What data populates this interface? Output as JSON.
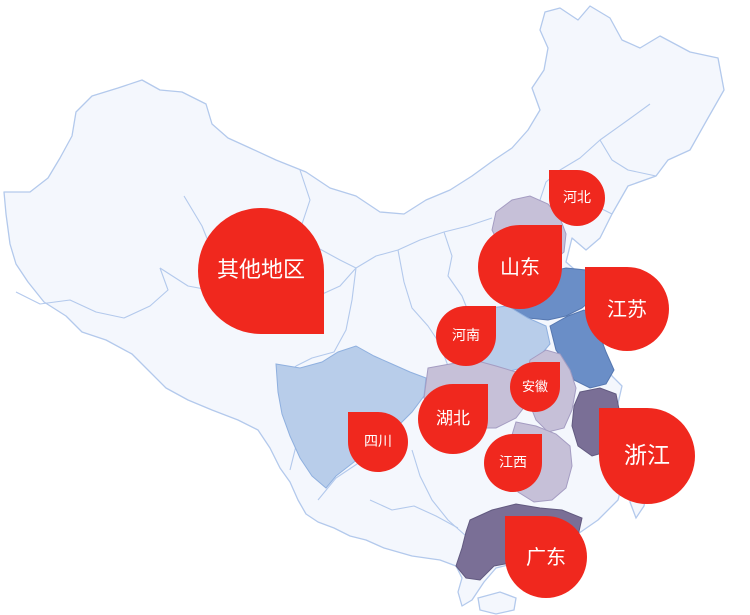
{
  "colors": {
    "land": "#f4f7fd",
    "border": "#b3c9ec",
    "marker": "#f0281e",
    "marker_text": "#ffffff",
    "province_light_blue": "#b8cdea",
    "province_blue": "#6a8ec7",
    "province_mauve": "#7a6f96",
    "province_lavender": "#c6c0d8"
  },
  "markers": [
    {
      "label": "其他地区"
    },
    {
      "label": "河北"
    },
    {
      "label": "山东"
    },
    {
      "label": "江苏"
    },
    {
      "label": "河南"
    },
    {
      "label": "安徽"
    },
    {
      "label": "湖北"
    },
    {
      "label": "四川"
    },
    {
      "label": "浙江"
    },
    {
      "label": "江西"
    },
    {
      "label": "广东"
    }
  ]
}
